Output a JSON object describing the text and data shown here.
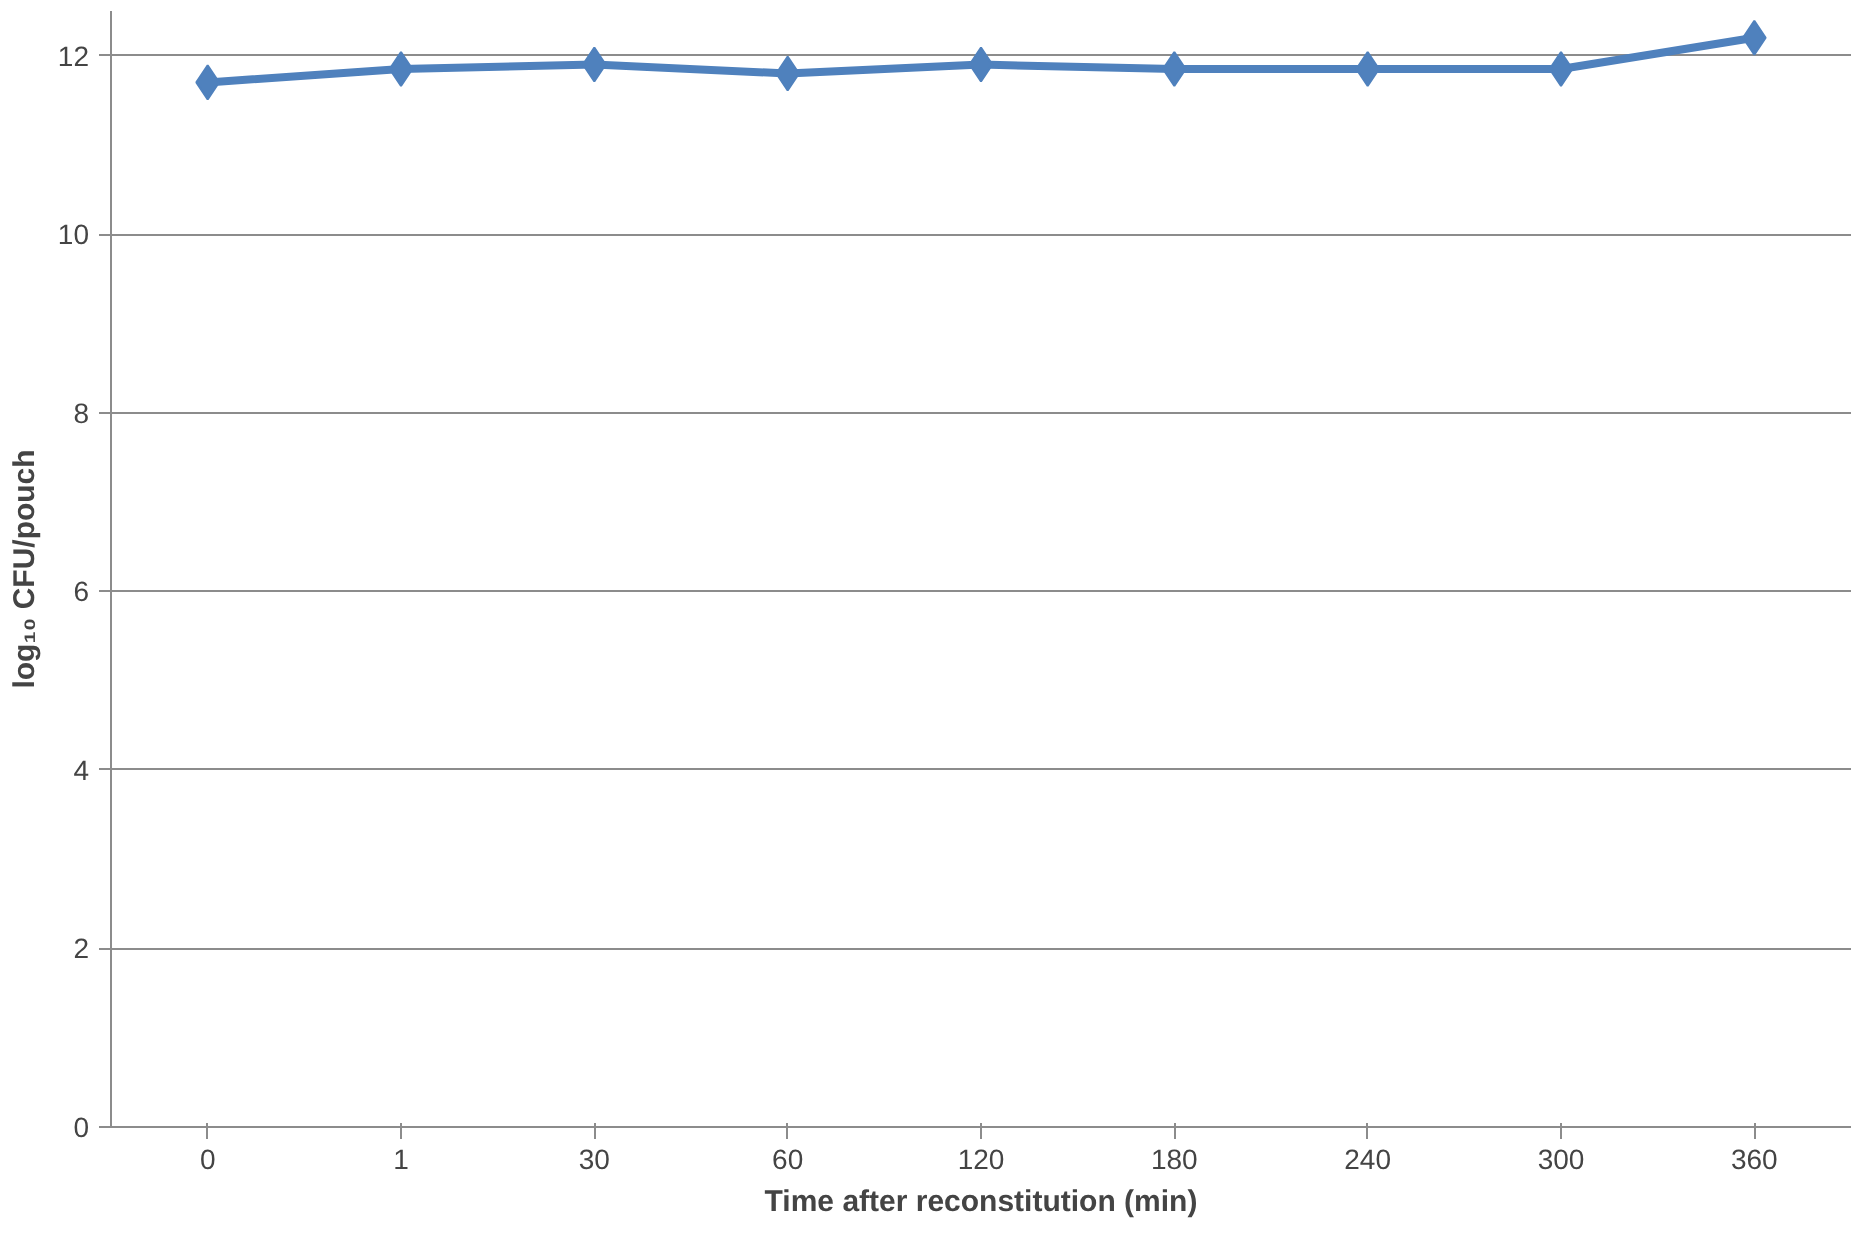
{
  "chart_data": {
    "type": "line",
    "xlabel": "Time after reconstitution (min)",
    "ylabel": "log₁₀ CFU/pouch",
    "categories": [
      "0",
      "1",
      "30",
      "60",
      "120",
      "180",
      "240",
      "300",
      "360"
    ],
    "series": [
      {
        "color": "#4f81bd",
        "values": [
          11.7,
          11.85,
          11.9,
          11.8,
          11.9,
          11.85,
          11.85,
          11.85,
          12.2
        ]
      }
    ],
    "ylim": [
      0,
      12.5
    ],
    "yticks": [
      0,
      2,
      4,
      6,
      8,
      10,
      12
    ],
    "grid": "y",
    "marker": "diamond",
    "line_style": "solid"
  }
}
